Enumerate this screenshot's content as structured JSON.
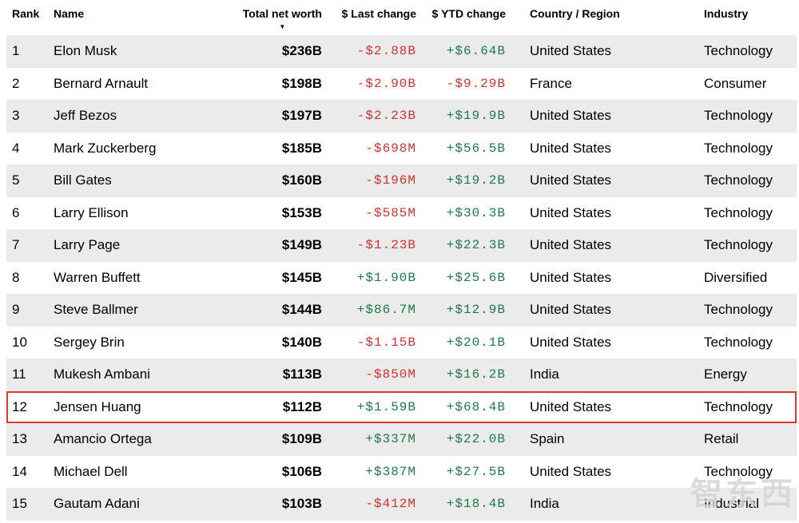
{
  "colors": {
    "positive": "#1d7a4b",
    "negative": "#d0342c",
    "stripe": "#ebebeb",
    "highlight_border": "#e03a26"
  },
  "table": {
    "columns": {
      "rank": {
        "label": "Rank"
      },
      "name": {
        "label": "Name"
      },
      "net_worth": {
        "label": "Total net worth",
        "sorted": "desc"
      },
      "last_change": {
        "label": "$ Last change"
      },
      "ytd_change": {
        "label": "$ YTD change"
      },
      "country": {
        "label": "Country / Region"
      },
      "industry": {
        "label": "Industry"
      }
    },
    "sort_icon": "▼",
    "rows": [
      {
        "rank": "1",
        "name": "Elon Musk",
        "net_worth": "$236B",
        "last_change": "-$2.88B",
        "ytd_change": "+$6.64B",
        "country": "United States",
        "industry": "Technology",
        "highlighted": false
      },
      {
        "rank": "2",
        "name": "Bernard Arnault",
        "net_worth": "$198B",
        "last_change": "-$2.90B",
        "ytd_change": "-$9.29B",
        "country": "France",
        "industry": "Consumer",
        "highlighted": false
      },
      {
        "rank": "3",
        "name": "Jeff Bezos",
        "net_worth": "$197B",
        "last_change": "-$2.23B",
        "ytd_change": "+$19.9B",
        "country": "United States",
        "industry": "Technology",
        "highlighted": false
      },
      {
        "rank": "4",
        "name": "Mark Zuckerberg",
        "net_worth": "$185B",
        "last_change": "-$698M",
        "ytd_change": "+$56.5B",
        "country": "United States",
        "industry": "Technology",
        "highlighted": false
      },
      {
        "rank": "5",
        "name": "Bill Gates",
        "net_worth": "$160B",
        "last_change": "-$196M",
        "ytd_change": "+$19.2B",
        "country": "United States",
        "industry": "Technology",
        "highlighted": false
      },
      {
        "rank": "6",
        "name": "Larry Ellison",
        "net_worth": "$153B",
        "last_change": "-$585M",
        "ytd_change": "+$30.3B",
        "country": "United States",
        "industry": "Technology",
        "highlighted": false
      },
      {
        "rank": "7",
        "name": "Larry Page",
        "net_worth": "$149B",
        "last_change": "-$1.23B",
        "ytd_change": "+$22.3B",
        "country": "United States",
        "industry": "Technology",
        "highlighted": false
      },
      {
        "rank": "8",
        "name": "Warren Buffett",
        "net_worth": "$145B",
        "last_change": "+$1.90B",
        "ytd_change": "+$25.6B",
        "country": "United States",
        "industry": "Diversified",
        "highlighted": false
      },
      {
        "rank": "9",
        "name": "Steve Ballmer",
        "net_worth": "$144B",
        "last_change": "+$86.7M",
        "ytd_change": "+$12.9B",
        "country": "United States",
        "industry": "Technology",
        "highlighted": false
      },
      {
        "rank": "10",
        "name": "Sergey Brin",
        "net_worth": "$140B",
        "last_change": "-$1.15B",
        "ytd_change": "+$20.1B",
        "country": "United States",
        "industry": "Technology",
        "highlighted": false
      },
      {
        "rank": "11",
        "name": "Mukesh Ambani",
        "net_worth": "$113B",
        "last_change": "-$850M",
        "ytd_change": "+$16.2B",
        "country": "India",
        "industry": "Energy",
        "highlighted": false
      },
      {
        "rank": "12",
        "name": "Jensen Huang",
        "net_worth": "$112B",
        "last_change": "+$1.59B",
        "ytd_change": "+$68.4B",
        "country": "United States",
        "industry": "Technology",
        "highlighted": true
      },
      {
        "rank": "13",
        "name": "Amancio Ortega",
        "net_worth": "$109B",
        "last_change": "+$337M",
        "ytd_change": "+$22.0B",
        "country": "Spain",
        "industry": "Retail",
        "highlighted": false
      },
      {
        "rank": "14",
        "name": "Michael Dell",
        "net_worth": "$106B",
        "last_change": "+$387M",
        "ytd_change": "+$27.5B",
        "country": "United States",
        "industry": "Technology",
        "highlighted": false
      },
      {
        "rank": "15",
        "name": "Gautam Adani",
        "net_worth": "$103B",
        "last_change": "-$412M",
        "ytd_change": "+$18.4B",
        "country": "India",
        "industry": "Industrial",
        "highlighted": false
      }
    ]
  },
  "watermark": {
    "text": "智东西"
  }
}
